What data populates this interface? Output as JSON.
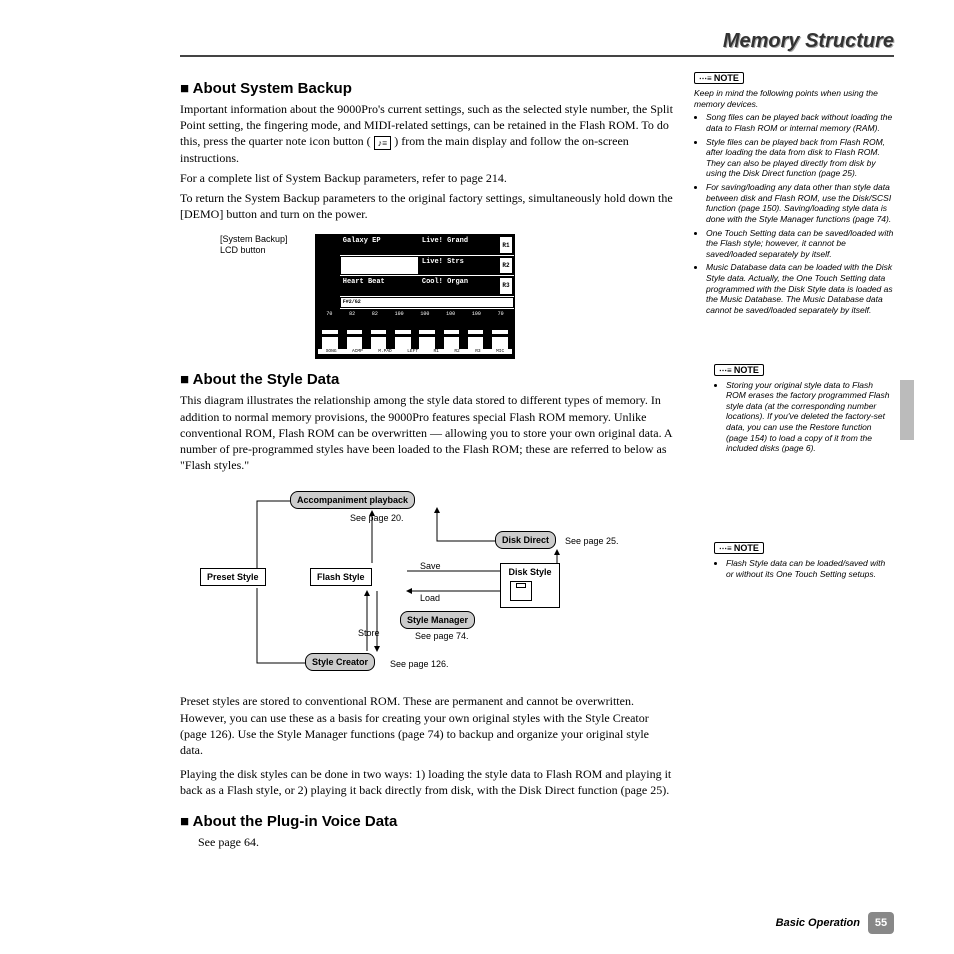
{
  "header": {
    "title": "Memory Structure"
  },
  "sections": {
    "backup": {
      "heading": "About System Backup",
      "p1a": "Important information about the 9000Pro's current settings, such as the selected style number, the Split Point setting, the fingering mode, and MIDI-related settings, can be retained in the Flash ROM. To do this, press the quarter note icon button (",
      "p1b": ") from the main display and follow the on-screen instructions.",
      "p2": "For a complete list of System Backup parameters, refer to page 214.",
      "p3": "To return the System Backup parameters to the original factory settings, simultaneously hold down the [DEMO] button and turn on the power.",
      "lcd_label": "[System Backup] LCD button"
    },
    "style": {
      "heading": "About the Style Data",
      "p1": "This diagram illustrates the relationship among the style data stored to different types of memory. In addition to normal memory provisions, the 9000Pro features special Flash ROM memory.  Unlike conventional ROM, Flash ROM can be overwritten — allowing you to store your own original data.  A number of pre-programmed styles have been loaded to the Flash ROM; these are referred to below as \"Flash styles.\"",
      "p2": "Preset styles are stored to conventional ROM.  These are permanent and cannot be overwritten.  However, you can use these as a basis for creating your own original styles with the Style Creator (page 126).  Use the Style Manager functions (page 74) to backup and organize your original style data.",
      "p3": "Playing the disk styles can be done in two ways: 1) loading the style data to Flash ROM and playing it back as a Flash style, or 2) playing it back directly from disk, with the Disk Direct function (page 25)."
    },
    "plugin": {
      "heading": "About the Plug-in Voice Data",
      "p1": "See page 64."
    }
  },
  "notes": {
    "n1": {
      "intro": "Keep in mind the following points when using the memory devices.",
      "items": [
        "Song files can be played back without loading the data to Flash ROM or internal memory (RAM).",
        "Style files can be played back from Flash ROM, after loading the data from disk to Flash ROM. They can also be played directly from disk by using the Disk Direct function (page 25).",
        "For saving/loading any data other than style data between disk and Flash ROM, use the Disk/SCSI function (page 150). Saving/loading style data is done with the Style Manager functions (page 74).",
        "One Touch Setting data can be saved/loaded with the Flash style; however, it cannot be saved/loaded separately by itself.",
        "Music Database data can be loaded with the Disk Style data.  Actually, the One Touch Setting data programmed with the Disk Style data is loaded as the Music Database.  The Music Database data cannot be saved/loaded separately by itself."
      ]
    },
    "n2": {
      "items": [
        "Storing your original style data to Flash ROM erases the factory programmed Flash style data (at the corresponding number locations).  If you've deleted the factory-set data, you can use the Restore function (page 154) to load a copy of it from the included disks (page 6)."
      ]
    },
    "n3": {
      "items": [
        "Flash Style data can be loaded/saved with or without its One Touch Setting setups."
      ]
    }
  },
  "lcd": {
    "left1": "Galaxy EP",
    "right1": "Live! Grand",
    "r1": "R1",
    "left2": "",
    "right2": "Live! Strs",
    "r2": "R2",
    "left3": "Heart Beat",
    "right3": "Cool! Organ",
    "r3": "R3",
    "info": "F#2/G2",
    "nums": [
      "70",
      "82",
      "82",
      "100",
      "100",
      "100",
      "100",
      "70"
    ],
    "labels": [
      "SONG",
      "ACMP",
      "M.PAD",
      "LEFT",
      "R1",
      "R2",
      "R3",
      "MIC"
    ]
  },
  "diagram": {
    "accomp": "Accompaniment playback",
    "accomp_ref": "See page 20.",
    "preset": "Preset Style",
    "flash": "Flash Style",
    "disk": "Disk Style",
    "diskdirect": "Disk Direct",
    "diskdirect_ref": "See page 25.",
    "save": "Save",
    "load": "Load",
    "manager": "Style Manager",
    "manager_ref": "See page 74.",
    "store": "Store",
    "creator": "Style Creator",
    "creator_ref": "See page 126.",
    "color_box": "#cccccc",
    "color_line": "#000000"
  },
  "footer": {
    "section": "Basic Operation",
    "page": "55"
  }
}
